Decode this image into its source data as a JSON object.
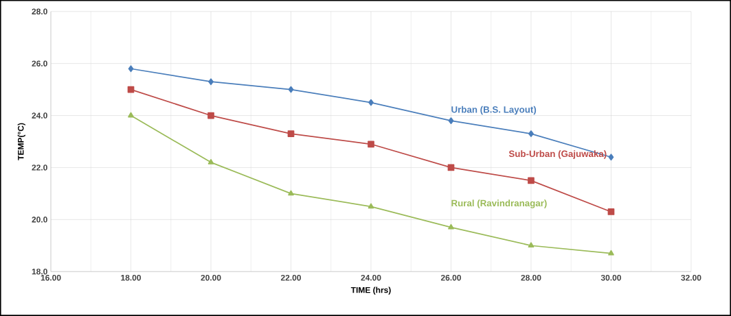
{
  "chart_data": {
    "type": "line",
    "xlabel": "TIME (hrs)",
    "ylabel": "TEMP(°C)",
    "x": [
      18,
      20,
      22,
      24,
      26,
      28,
      30
    ],
    "series": [
      {
        "name": "Urban (B.S. Layout)",
        "color": "#4a7ebb",
        "marker": "diamond",
        "values": [
          25.8,
          25.3,
          25.0,
          24.5,
          23.8,
          23.3,
          22.4
        ]
      },
      {
        "name": "Sub-Urban (Gajuwaka)",
        "color": "#be4b48",
        "marker": "square",
        "values": [
          25.0,
          24.0,
          23.3,
          22.9,
          22.0,
          21.5,
          20.3
        ]
      },
      {
        "name": "Rural (Ravindranagar)",
        "color": "#9bbb59",
        "marker": "triangle",
        "values": [
          24.0,
          22.2,
          21.0,
          20.5,
          19.7,
          19.0,
          18.7
        ]
      }
    ],
    "xlim": [
      16,
      32
    ],
    "ylim": [
      18,
      28
    ],
    "xticks": [
      {
        "value": 16,
        "label": "16.00"
      },
      {
        "value": 18,
        "label": "18.00"
      },
      {
        "value": 20,
        "label": "20.00"
      },
      {
        "value": 22,
        "label": "22.00"
      },
      {
        "value": 24,
        "label": "24.00"
      },
      {
        "value": 26,
        "label": "26.00"
      },
      {
        "value": 28,
        "label": "28.00"
      },
      {
        "value": 30,
        "label": "30.00"
      },
      {
        "value": 32,
        "label": "32.00"
      }
    ],
    "yticks": [
      {
        "value": 18,
        "label": "18.0"
      },
      {
        "value": 20,
        "label": "20.0"
      },
      {
        "value": 22,
        "label": "22.0"
      },
      {
        "value": 24,
        "label": "24.0"
      },
      {
        "value": 26,
        "label": "26.0"
      },
      {
        "value": 28,
        "label": "28.0"
      }
    ],
    "grid": true,
    "legend": false,
    "line_style": "solid"
  }
}
